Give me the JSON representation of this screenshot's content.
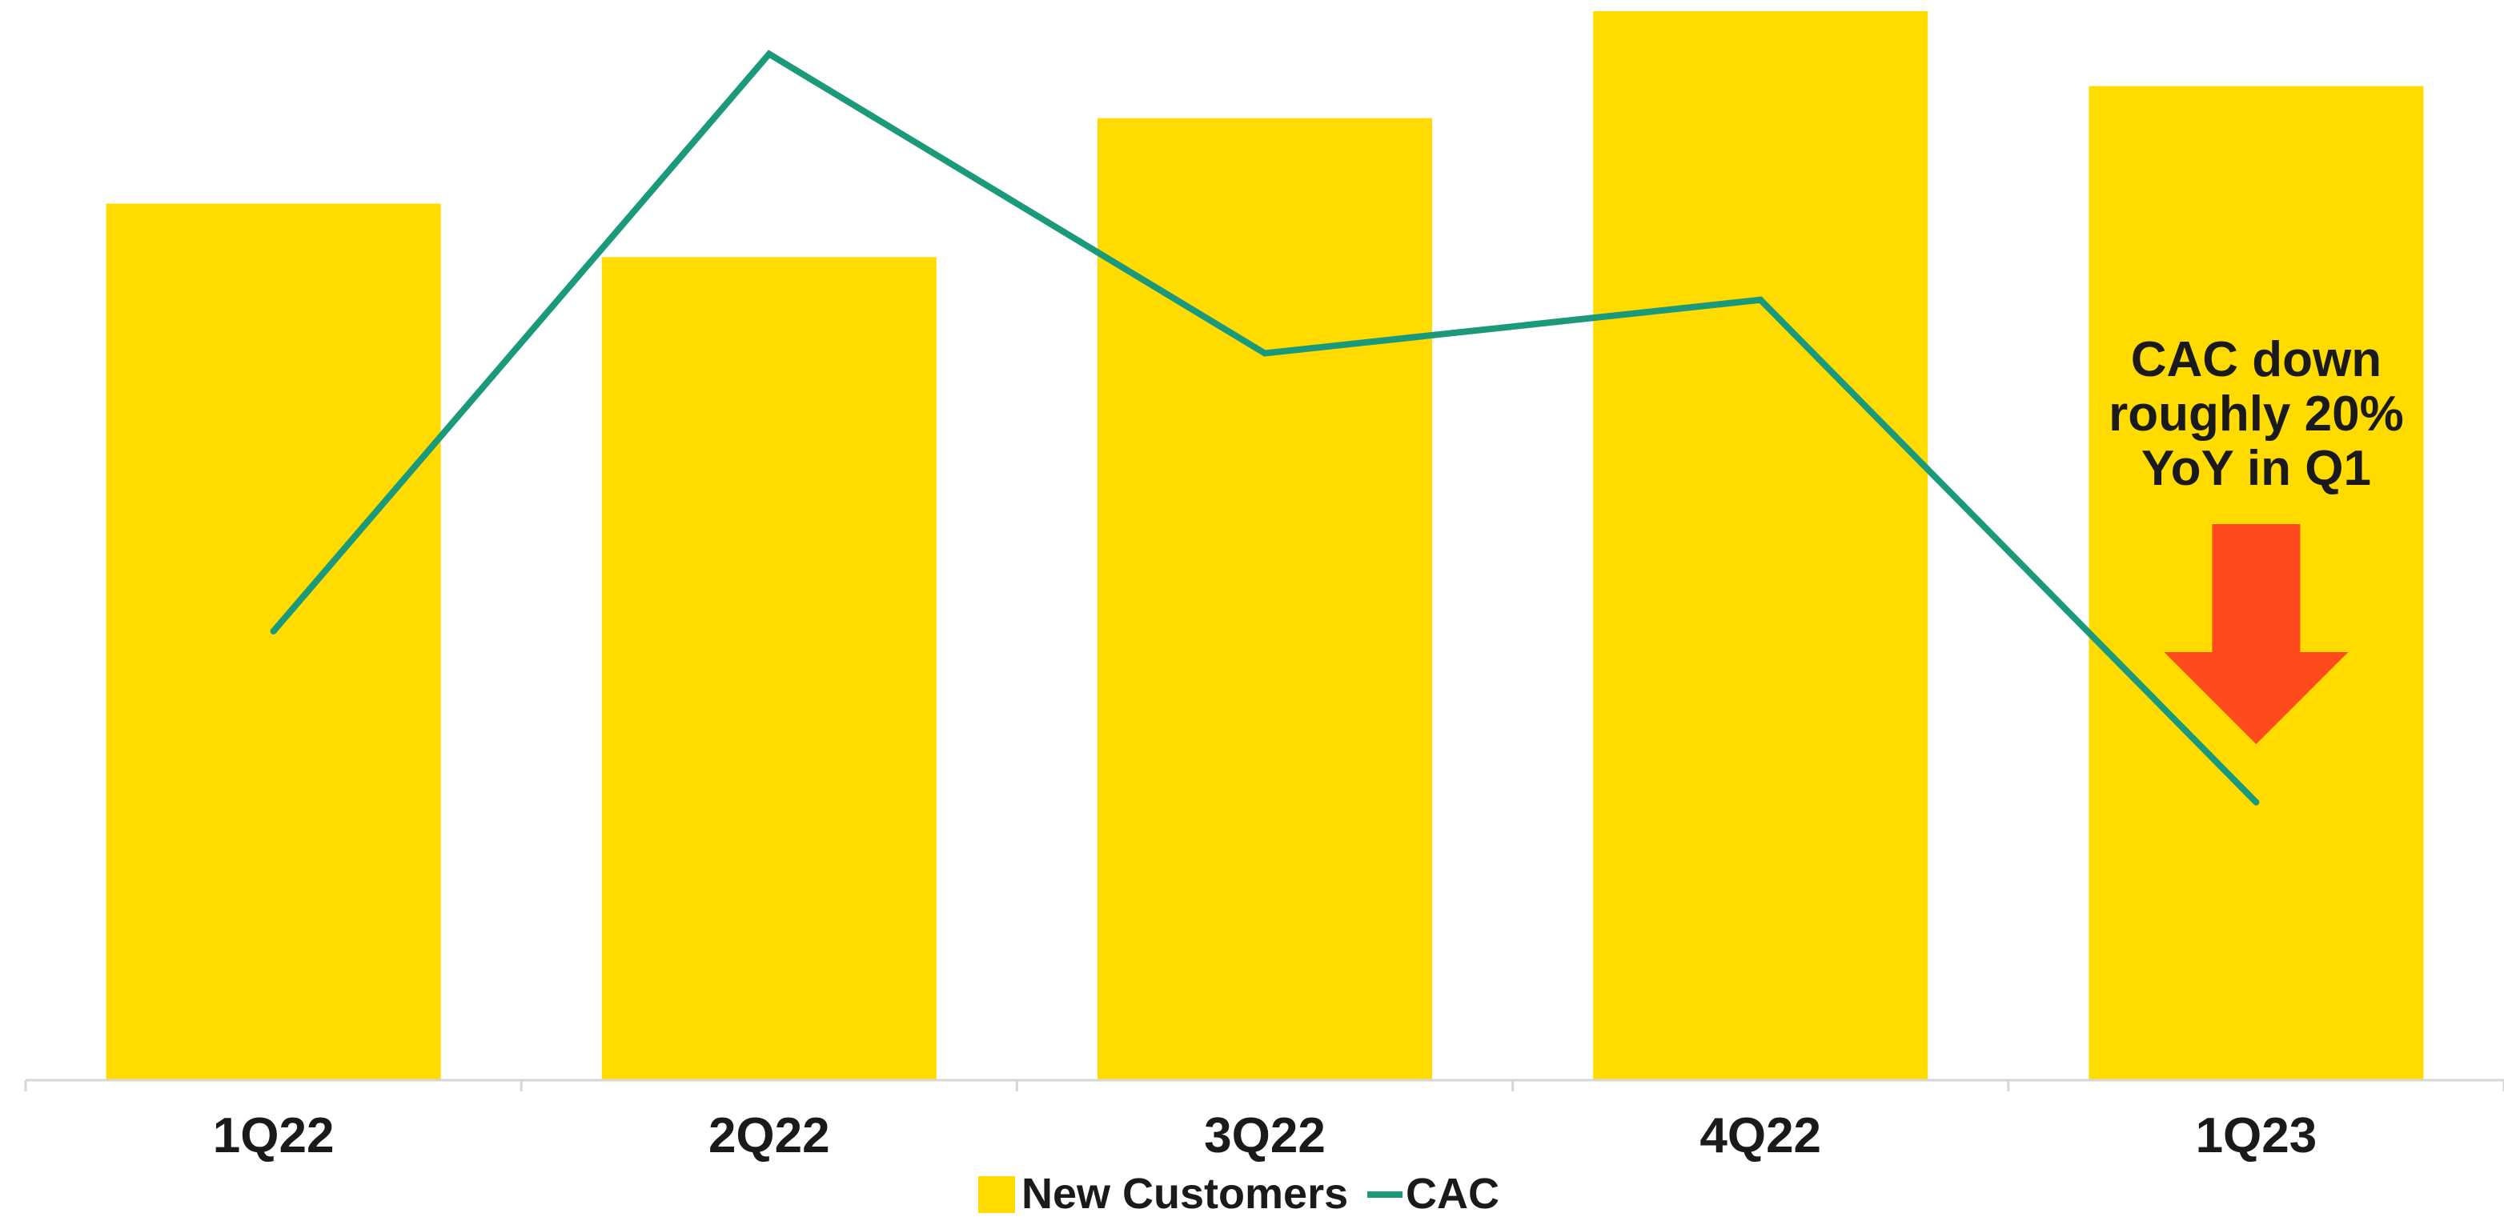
{
  "chart_data": {
    "type": "bar",
    "categories": [
      "1Q22",
      "2Q22",
      "3Q22",
      "4Q22",
      "1Q23"
    ],
    "series": [
      {
        "name": "New Customers",
        "kind": "bar",
        "values": [
          82,
          77,
          90,
          100,
          93
        ]
      },
      {
        "name": "CAC",
        "kind": "line",
        "values": [
          42,
          96,
          68,
          73,
          26
        ]
      }
    ],
    "ylim": [
      0,
      100
    ],
    "grid": false,
    "legend": "bottom-center",
    "annotation": {
      "lines": [
        "CAC down",
        "roughly 20%",
        "YoY in Q1"
      ],
      "category": "1Q23",
      "arrow": "down"
    },
    "colors": {
      "bar": "#FFDB00",
      "line": "#1A9A7A",
      "arrow": "#FF4A1C",
      "axis": "#d6d6d6",
      "text": "#1a1a1a"
    }
  }
}
